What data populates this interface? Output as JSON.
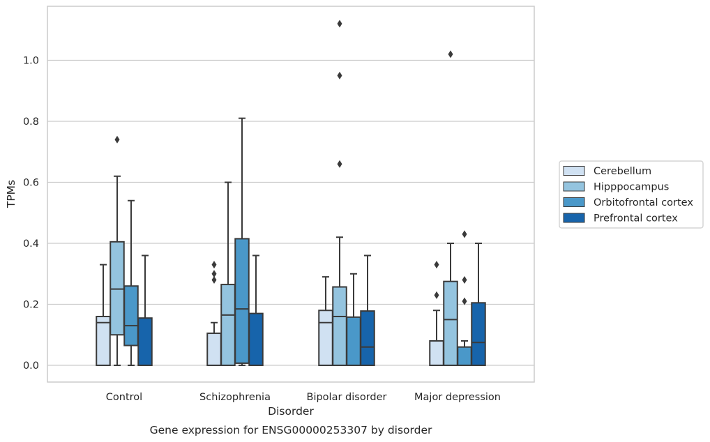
{
  "chart_data": {
    "type": "boxplot",
    "title": "",
    "caption": "Gene expression for ENSG00000253307 by disorder",
    "xlabel": "Disorder",
    "ylabel": "TPMs",
    "ylim": [
      -0.055,
      1.18
    ],
    "yticks": [
      0.0,
      0.2,
      0.4,
      0.6,
      0.8,
      1.0
    ],
    "ytick_labels": [
      "0.0",
      "0.2",
      "0.4",
      "0.6",
      "0.8",
      "1.0"
    ],
    "grid": "horizontal",
    "legend_position": "right",
    "categories": [
      "Control",
      "Schizophrenia",
      "Bipolar disorder",
      "Major depression"
    ],
    "series": [
      {
        "name": "Cerebellum",
        "color": "#d0e1f2",
        "boxes": [
          {
            "whislo": 0.0,
            "q1": 0.0,
            "med": 0.14,
            "q3": 0.16,
            "whishi": 0.33,
            "fliers": []
          },
          {
            "whislo": 0.0,
            "q1": 0.0,
            "med": 0.0,
            "q3": 0.105,
            "whishi": 0.14,
            "fliers": [
              0.28,
              0.3,
              0.33
            ]
          },
          {
            "whislo": 0.0,
            "q1": 0.0,
            "med": 0.14,
            "q3": 0.18,
            "whishi": 0.29,
            "fliers": []
          },
          {
            "whislo": 0.0,
            "q1": 0.0,
            "med": 0.0,
            "q3": 0.08,
            "whishi": 0.18,
            "fliers": [
              0.23,
              0.33
            ]
          }
        ]
      },
      {
        "name": "Hipppocampus",
        "color": "#94c4df",
        "boxes": [
          {
            "whislo": 0.0,
            "q1": 0.1,
            "med": 0.25,
            "q3": 0.405,
            "whishi": 0.62,
            "fliers": [
              0.74
            ]
          },
          {
            "whislo": 0.0,
            "q1": 0.0,
            "med": 0.165,
            "q3": 0.265,
            "whishi": 0.6,
            "fliers": []
          },
          {
            "whislo": 0.0,
            "q1": 0.0,
            "med": 0.16,
            "q3": 0.257,
            "whishi": 0.42,
            "fliers": [
              0.66,
              0.95,
              1.12
            ]
          },
          {
            "whislo": 0.0,
            "q1": 0.0,
            "med": 0.15,
            "q3": 0.275,
            "whishi": 0.4,
            "fliers": [
              1.02
            ]
          }
        ]
      },
      {
        "name": "Orbitofrontal cortex",
        "color": "#4a98c9",
        "boxes": [
          {
            "whislo": 0.0,
            "q1": 0.065,
            "med": 0.13,
            "q3": 0.26,
            "whishi": 0.54,
            "fliers": []
          },
          {
            "whislo": 0.0,
            "q1": 0.007,
            "med": 0.185,
            "q3": 0.415,
            "whishi": 0.81,
            "fliers": []
          },
          {
            "whislo": 0.0,
            "q1": 0.0,
            "med": 0.0,
            "q3": 0.158,
            "whishi": 0.3,
            "fliers": []
          },
          {
            "whislo": 0.0,
            "q1": 0.0,
            "med": 0.0,
            "q3": 0.06,
            "whishi": 0.08,
            "fliers": [
              0.21,
              0.28,
              0.43
            ]
          }
        ]
      },
      {
        "name": "Prefrontal cortex",
        "color": "#1764ab",
        "boxes": [
          {
            "whislo": 0.0,
            "q1": 0.0,
            "med": 0.0,
            "q3": 0.155,
            "whishi": 0.36,
            "fliers": []
          },
          {
            "whislo": 0.0,
            "q1": 0.0,
            "med": 0.0,
            "q3": 0.17,
            "whishi": 0.36,
            "fliers": []
          },
          {
            "whislo": 0.0,
            "q1": 0.0,
            "med": 0.06,
            "q3": 0.178,
            "whishi": 0.36,
            "fliers": []
          },
          {
            "whislo": 0.0,
            "q1": 0.0,
            "med": 0.075,
            "q3": 0.205,
            "whishi": 0.4,
            "fliers": []
          }
        ]
      }
    ]
  },
  "colors": {
    "edge": "#3a3a3a",
    "grid": "#cccccc",
    "spine": "#cccccc"
  }
}
